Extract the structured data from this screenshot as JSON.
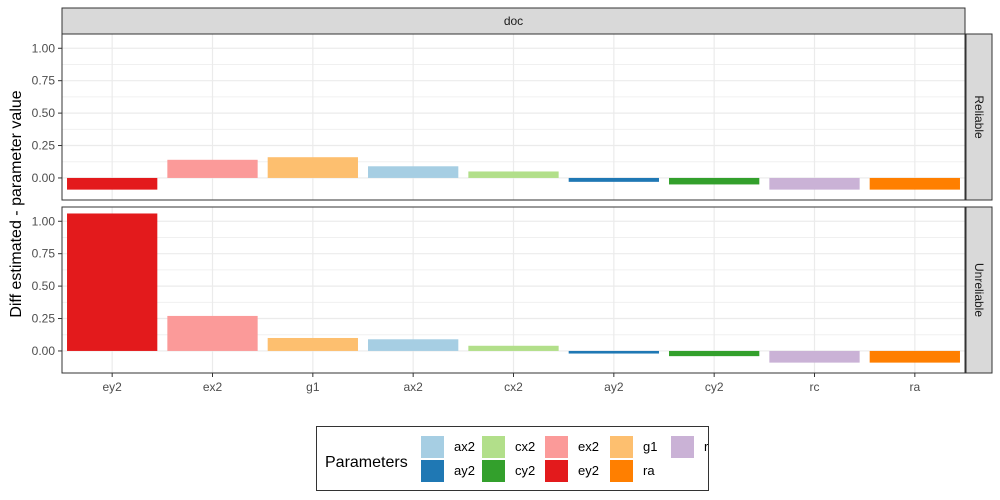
{
  "chart_data": {
    "type": "bar",
    "facet_column_label": "doc",
    "ylabel": "Diff estimated - parameter value",
    "xlabel": "",
    "ylim": [
      -0.17,
      1.11
    ],
    "yticks": [
      0.0,
      0.25,
      0.5,
      0.75,
      1.0
    ],
    "ytick_labels": [
      "0.00",
      "0.25",
      "0.50",
      "0.75",
      "1.00"
    ],
    "categories": [
      "ey2",
      "ex2",
      "g1",
      "ax2",
      "cx2",
      "ay2",
      "cy2",
      "rc",
      "ra"
    ],
    "grid": true,
    "panels": [
      {
        "label": "Reliable",
        "values": [
          -0.09,
          0.14,
          0.16,
          0.09,
          0.05,
          -0.03,
          -0.05,
          -0.09,
          -0.09
        ]
      },
      {
        "label": "Unreliable",
        "values": [
          1.06,
          0.27,
          0.1,
          0.09,
          0.04,
          -0.02,
          -0.04,
          -0.09,
          -0.09
        ]
      }
    ],
    "colors": {
      "ey2": "#e31a1c",
      "ex2": "#fb9a99",
      "g1": "#fdbf6f",
      "ax2": "#a6cee3",
      "cx2": "#b2df8a",
      "ay2": "#1f78b4",
      "cy2": "#33a02c",
      "rc": "#cab2d6",
      "ra": "#ff7f00"
    },
    "legend": {
      "title": "Parameters",
      "placement": "bottom",
      "entries": [
        "ax2",
        "ay2",
        "cx2",
        "cy2",
        "ex2",
        "ey2",
        "g1",
        "ra",
        "rc"
      ]
    }
  }
}
